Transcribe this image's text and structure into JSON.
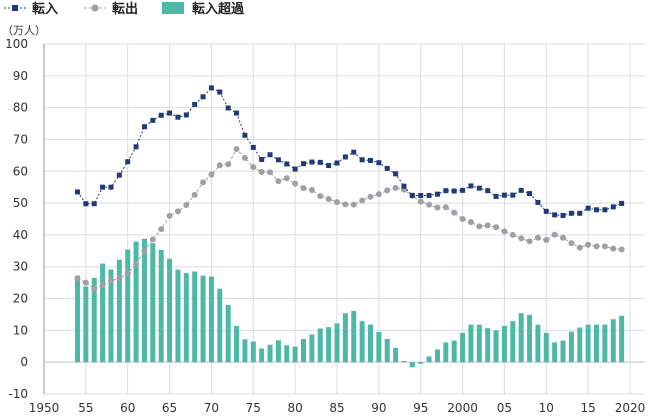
{
  "chart_data": {
    "type": "bar+line",
    "unit_label": "（万人）",
    "xlim": [
      1950,
      2020
    ],
    "ylim": [
      -10,
      100
    ],
    "x_ticks": [
      1950,
      1955,
      1960,
      1965,
      1970,
      1975,
      1980,
      1985,
      1990,
      1995,
      2000,
      2005,
      2010,
      2015,
      2020
    ],
    "x_tick_labels": [
      "1950",
      "55",
      "60",
      "65",
      "70",
      "75",
      "80",
      "85",
      "90",
      "95",
      "2000",
      "05",
      "10",
      "15",
      "2020"
    ],
    "y_ticks": [
      -10,
      0,
      10,
      20,
      30,
      40,
      50,
      60,
      70,
      80,
      90,
      100
    ],
    "grid": true,
    "legend_position": "top-left",
    "x": [
      1954,
      1955,
      1956,
      1957,
      1958,
      1959,
      1960,
      1961,
      1962,
      1963,
      1964,
      1965,
      1966,
      1967,
      1968,
      1969,
      1970,
      1971,
      1972,
      1973,
      1974,
      1975,
      1976,
      1977,
      1978,
      1979,
      1980,
      1981,
      1982,
      1983,
      1984,
      1985,
      1986,
      1987,
      1988,
      1989,
      1990,
      1991,
      1992,
      1993,
      1994,
      1995,
      1996,
      1997,
      1998,
      1999,
      2000,
      2001,
      2002,
      2003,
      2004,
      2005,
      2006,
      2007,
      2008,
      2009,
      2010,
      2011,
      2012,
      2013,
      2014,
      2015,
      2016,
      2017,
      2018,
      2019
    ],
    "series": [
      {
        "name": "転入",
        "type": "line",
        "marker": "square",
        "color": "#1f3a7a",
        "values": [
          53.5,
          49.8,
          49.8,
          55,
          55,
          58.8,
          63,
          67.7,
          74,
          76,
          77.6,
          78.3,
          77,
          77.7,
          81,
          83.4,
          86.2,
          84.9,
          79.9,
          78.3,
          71.3,
          67.5,
          63.7,
          65.2,
          63.6,
          62.3,
          60.7,
          62.4,
          62.9,
          62.8,
          61.8,
          62.6,
          64.5,
          66,
          63.6,
          63.4,
          62.7,
          60.9,
          59.2,
          55.3,
          52.4,
          52.4,
          52.4,
          52.8,
          53.9,
          53.8,
          54,
          55.4,
          54.7,
          53.9,
          52.1,
          52.5,
          52.5,
          54,
          53,
          50.2,
          47.4,
          46.3,
          46.1,
          46.8,
          46.8,
          48.4,
          47.9,
          47.9,
          48.8,
          49.9
        ]
      },
      {
        "name": "転出",
        "type": "line",
        "marker": "circle",
        "color": "#a0a0a4",
        "values": [
          26.3,
          25,
          23.1,
          24.3,
          25.7,
          26.2,
          28,
          30.7,
          35,
          38.6,
          41.8,
          46,
          47.4,
          49.4,
          52.6,
          56.5,
          59,
          61.9,
          62.2,
          67,
          64.2,
          61.3,
          59.8,
          59.7,
          56.9,
          57.8,
          56.1,
          54.7,
          54.1,
          52.2,
          51.3,
          50.3,
          49.6,
          49.5,
          50.8,
          52,
          52.8,
          54,
          54.8,
          54.2,
          52.3,
          50.5,
          49.5,
          48.6,
          48.7,
          47,
          45,
          44,
          42.7,
          43,
          42.4,
          41.1,
          40,
          38.9,
          38,
          39.1,
          38.4,
          40.1,
          39.1,
          37.4,
          36,
          36.9,
          36.4,
          36.4,
          35.7,
          35.4
        ]
      },
      {
        "name": "転入超過",
        "type": "bar",
        "color": "#4db8a8",
        "values": [
          27.2,
          23.8,
          26.5,
          31,
          29.1,
          32.2,
          35.4,
          37.9,
          38.8,
          37.4,
          35.3,
          32.5,
          29.1,
          28,
          28.5,
          27.2,
          26.9,
          23.1,
          18,
          11.4,
          7.2,
          6.5,
          4.3,
          5.5,
          6.9,
          5.3,
          4.9,
          7.3,
          8.7,
          10.6,
          11,
          12.2,
          15.4,
          16.1,
          12.9,
          11.8,
          9.5,
          7.3,
          4.5,
          0.4,
          -1.6,
          -0.5,
          1.8,
          4,
          6.2,
          6.8,
          9.2,
          11.8,
          11.8,
          10.7,
          10,
          11.4,
          12.9,
          15.4,
          14.9,
          11.8,
          9.2,
          6.2,
          6.8,
          9.6,
          10.9,
          11.8,
          11.8,
          11.8,
          13.5,
          14.6
        ]
      }
    ]
  }
}
